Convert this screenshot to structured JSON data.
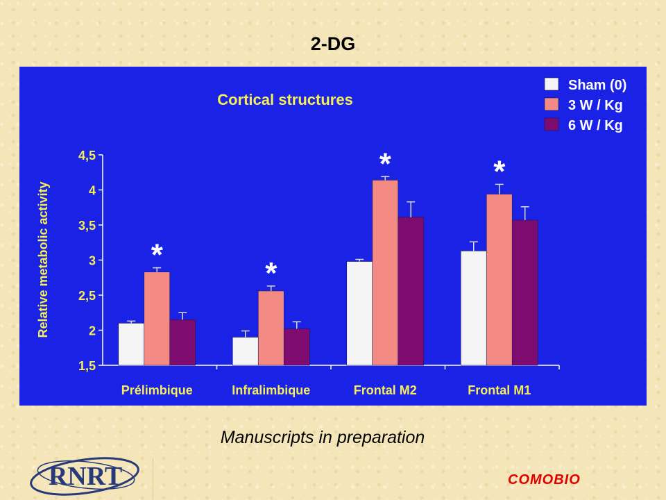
{
  "page": {
    "title": "2-DG",
    "caption": "Manuscripts in preparation",
    "logo_text": "RNRT",
    "brand": "COMOBIO"
  },
  "colors": {
    "panel_background": "#1a22e6",
    "title_text": "#f5ef55",
    "sham": "#f5f5f5",
    "w3": "#f48a84",
    "w6": "#7e0c70",
    "brand": "#e00000",
    "logo_blue": "#27397a"
  },
  "chart_data": {
    "type": "bar",
    "title": "Cortical structures",
    "ylabel": "Relative metabolic activity",
    "xlabel": "",
    "categories": [
      "Prélimbique",
      "Infralimbique",
      "Frontal M2",
      "Frontal M1"
    ],
    "ylim": [
      1.5,
      4.5
    ],
    "yticks": [
      "1,5",
      "2",
      "2,5",
      "3",
      "3,5",
      "4",
      "4,5"
    ],
    "grid": false,
    "legend_position": "top-right",
    "series": [
      {
        "name": "Sham (0)",
        "values": [
          2.1,
          1.9,
          2.98,
          3.13
        ],
        "errors": [
          0.03,
          0.09,
          0.03,
          0.13
        ]
      },
      {
        "name": "3 W / Kg",
        "values": [
          2.83,
          2.56,
          4.14,
          3.94
        ],
        "errors": [
          0.06,
          0.07,
          0.05,
          0.14
        ]
      },
      {
        "name": "6 W / Kg",
        "values": [
          2.15,
          2.02,
          3.61,
          3.57
        ],
        "errors": [
          0.1,
          0.1,
          0.22,
          0.19
        ]
      }
    ],
    "annotations": {
      "symbol": "*",
      "series": "3 W / Kg",
      "categories": [
        "Prélimbique",
        "Infralimbique",
        "Frontal M2",
        "Frontal M1"
      ]
    }
  }
}
